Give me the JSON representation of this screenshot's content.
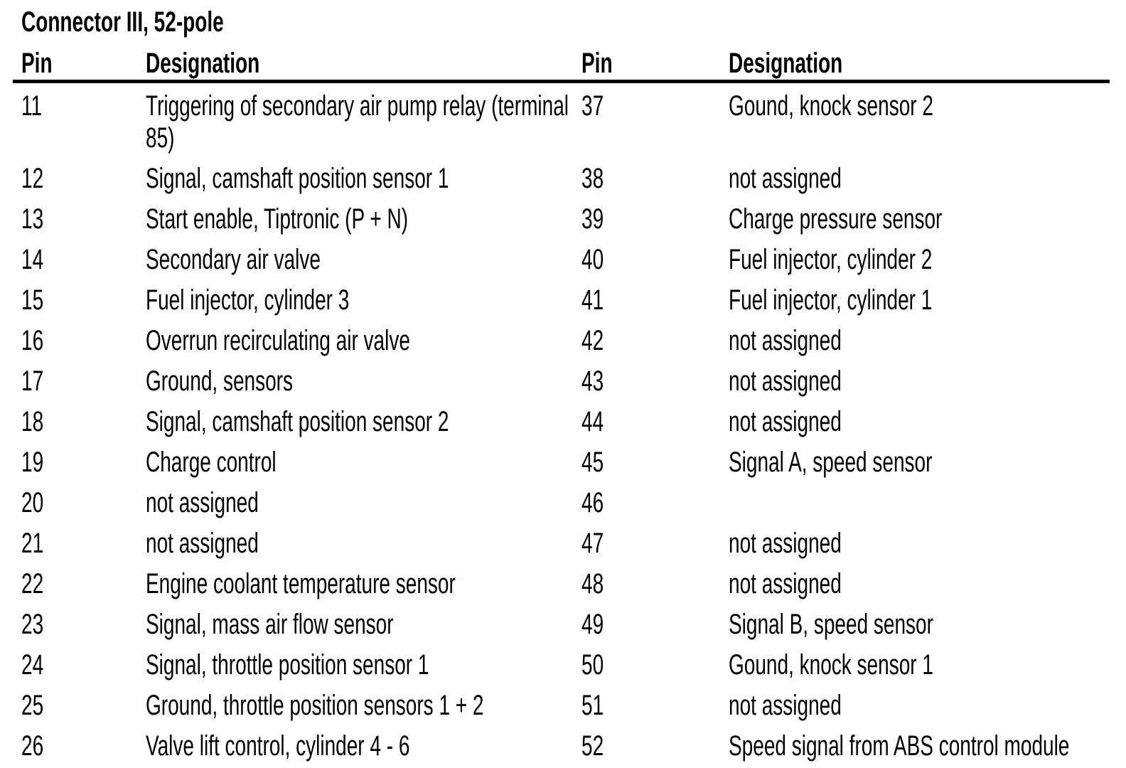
{
  "title": "Connector III, 52-pole",
  "header": {
    "pin": "Pin",
    "designation": "Designation"
  },
  "rows": [
    {
      "left": {
        "pin": "11",
        "designation": "Triggering of secondary air pump relay (ter­minal 85)"
      },
      "right": {
        "pin": "37",
        "designation": "Gound, knock sensor 2"
      }
    },
    {
      "left": {
        "pin": "12",
        "designation": "Signal, camshaft position sensor 1"
      },
      "right": {
        "pin": "38",
        "designation": "not assigned"
      }
    },
    {
      "left": {
        "pin": "13",
        "designation": "Start enable, Tiptronic (P + N)"
      },
      "right": {
        "pin": "39",
        "designation": "Charge pressure sensor"
      }
    },
    {
      "left": {
        "pin": "14",
        "designation": "Secondary air valve"
      },
      "right": {
        "pin": "40",
        "designation": "Fuel injector, cylinder 2"
      }
    },
    {
      "left": {
        "pin": "15",
        "designation": "Fuel injector, cylinder 3"
      },
      "right": {
        "pin": "41",
        "designation": "Fuel injector, cylinder 1"
      }
    },
    {
      "left": {
        "pin": "16",
        "designation": "Overrun recirculating air valve"
      },
      "right": {
        "pin": "42",
        "designation": "not assigned"
      }
    },
    {
      "left": {
        "pin": "17",
        "designation": "Ground, sensors"
      },
      "right": {
        "pin": "43",
        "designation": "not assigned"
      }
    },
    {
      "left": {
        "pin": "18",
        "designation": "Signal, camshaft position sensor 2"
      },
      "right": {
        "pin": "44",
        "designation": "not assigned"
      }
    },
    {
      "left": {
        "pin": "19",
        "designation": "Charge control"
      },
      "right": {
        "pin": "45",
        "designation": "Signal A, speed sensor"
      }
    },
    {
      "left": {
        "pin": "20",
        "designation": "not assigned"
      },
      "right": {
        "pin": "46",
        "designation": ""
      }
    },
    {
      "left": {
        "pin": "21",
        "designation": "not assigned"
      },
      "right": {
        "pin": "47",
        "designation": "not assigned"
      }
    },
    {
      "left": {
        "pin": "22",
        "designation": "Engine coolant temperature sensor"
      },
      "right": {
        "pin": "48",
        "designation": "not assigned"
      }
    },
    {
      "left": {
        "pin": "23",
        "designation": "Signal, mass air flow sensor"
      },
      "right": {
        "pin": "49",
        "designation": "Signal B, speed sensor"
      }
    },
    {
      "left": {
        "pin": "24",
        "designation": "Signal, throttle position sensor 1"
      },
      "right": {
        "pin": "50",
        "designation": "Gound, knock sensor 1"
      }
    },
    {
      "left": {
        "pin": "25",
        "designation": "Ground, throttle position sensors 1 + 2"
      },
      "right": {
        "pin": "51",
        "designation": "not assigned"
      }
    },
    {
      "left": {
        "pin": "26",
        "designation": "Valve lift control, cylinder 4 - 6"
      },
      "right": {
        "pin": "52",
        "designation": "Speed signal from ABS control module"
      }
    }
  ]
}
